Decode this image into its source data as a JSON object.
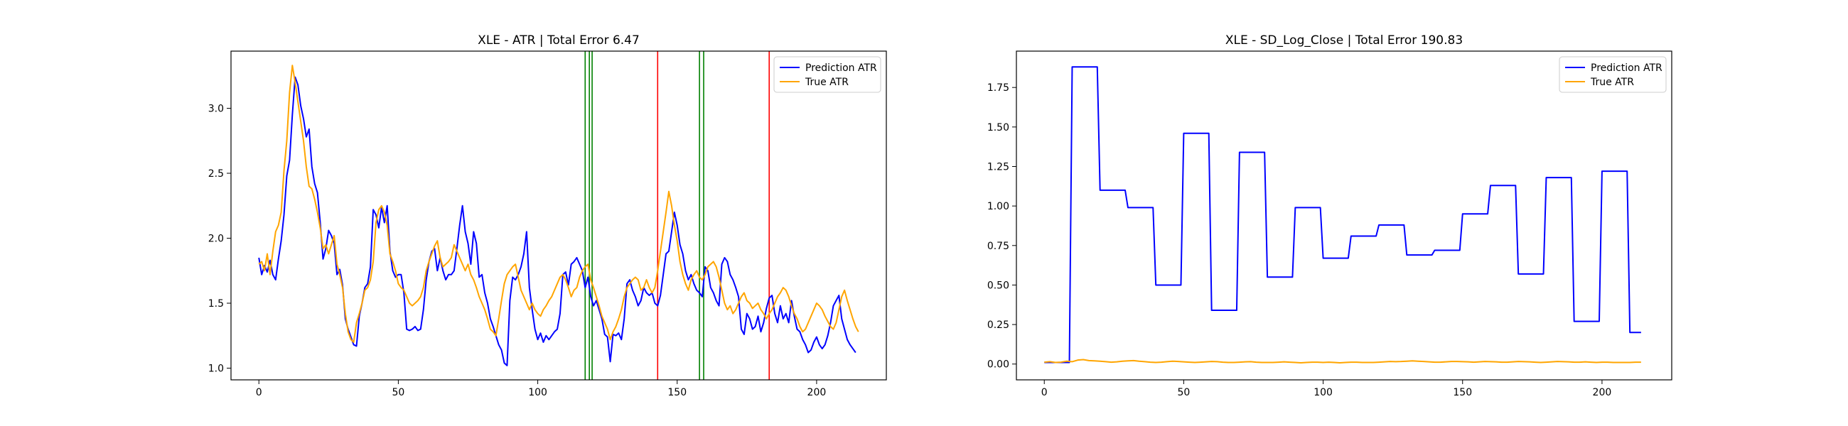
{
  "chart_data": [
    {
      "type": "line",
      "title": "XLE - ATR | Total Error 6.47",
      "xlabel": "",
      "ylabel": "",
      "xlim": [
        -10,
        225
      ],
      "ylim": [
        0.91,
        3.44
      ],
      "xticks": [
        0,
        50,
        100,
        150,
        200
      ],
      "yticks": [
        1.0,
        1.5,
        2.0,
        2.5,
        3.0
      ],
      "ytick_decimals": 1,
      "grid": false,
      "legend_position": "top-right",
      "vertical_lines": [
        {
          "x": 117,
          "color": "#008000"
        },
        {
          "x": 118.5,
          "color": "#008000"
        },
        {
          "x": 119.5,
          "color": "#008000"
        },
        {
          "x": 143,
          "color": "#ff0000"
        },
        {
          "x": 158,
          "color": "#008000"
        },
        {
          "x": 159.5,
          "color": "#008000"
        },
        {
          "x": 183,
          "color": "#ff0000"
        }
      ],
      "series": [
        {
          "name": "Prediction ATR",
          "color": "#0000ff",
          "x_start": 0,
          "values": [
            1.85,
            1.72,
            1.79,
            1.74,
            1.83,
            1.72,
            1.68,
            1.84,
            1.98,
            2.18,
            2.48,
            2.6,
            2.95,
            3.24,
            3.18,
            3.02,
            2.92,
            2.78,
            2.84,
            2.55,
            2.42,
            2.35,
            2.12,
            1.84,
            1.92,
            2.06,
            2.02,
            1.96,
            1.72,
            1.76,
            1.64,
            1.38,
            1.3,
            1.24,
            1.18,
            1.17,
            1.4,
            1.5,
            1.62,
            1.65,
            1.78,
            2.22,
            2.18,
            2.08,
            2.24,
            2.12,
            2.25,
            1.9,
            1.75,
            1.7,
            1.72,
            1.72,
            1.58,
            1.3,
            1.29,
            1.3,
            1.32,
            1.29,
            1.3,
            1.45,
            1.68,
            1.82,
            1.9,
            1.92,
            1.75,
            1.85,
            1.75,
            1.68,
            1.72,
            1.72,
            1.75,
            1.92,
            2.1,
            2.25,
            2.05,
            1.96,
            1.8,
            2.05,
            1.96,
            1.7,
            1.72,
            1.58,
            1.5,
            1.38,
            1.32,
            1.25,
            1.18,
            1.14,
            1.04,
            1.02,
            1.52,
            1.7,
            1.68,
            1.72,
            1.78,
            1.88,
            2.05,
            1.62,
            1.45,
            1.3,
            1.22,
            1.27,
            1.2,
            1.25,
            1.22,
            1.25,
            1.28,
            1.3,
            1.42,
            1.72,
            1.74,
            1.64,
            1.8,
            1.82,
            1.85,
            1.8,
            1.75,
            1.62,
            1.7,
            1.55,
            1.48,
            1.52,
            1.45,
            1.38,
            1.26,
            1.24,
            1.05,
            1.26,
            1.25,
            1.27,
            1.22,
            1.38,
            1.65,
            1.68,
            1.6,
            1.55,
            1.48,
            1.52,
            1.62,
            1.58,
            1.56,
            1.58,
            1.5,
            1.48,
            1.56,
            1.72,
            1.88,
            1.9,
            2.05,
            2.2,
            2.1,
            1.95,
            1.88,
            1.75,
            1.68,
            1.72,
            1.65,
            1.6,
            1.58,
            1.55,
            1.78,
            1.75,
            1.62,
            1.58,
            1.52,
            1.48,
            1.8,
            1.85,
            1.82,
            1.72,
            1.68,
            1.62,
            1.55,
            1.3,
            1.26,
            1.42,
            1.38,
            1.3,
            1.32,
            1.4,
            1.28,
            1.35,
            1.46,
            1.54,
            1.56,
            1.42,
            1.35,
            1.48,
            1.38,
            1.42,
            1.35,
            1.52,
            1.4,
            1.3,
            1.28,
            1.22,
            1.18,
            1.12,
            1.14,
            1.2,
            1.24,
            1.18,
            1.15,
            1.18,
            1.25,
            1.35,
            1.48,
            1.52,
            1.56,
            1.38,
            1.3,
            1.22,
            1.18,
            1.15,
            1.12
          ]
        },
        {
          "name": "True ATR",
          "color": "#ffa500",
          "x_start": 0,
          "values": [
            1.8,
            1.82,
            1.75,
            1.88,
            1.72,
            1.9,
            2.05,
            2.1,
            2.2,
            2.52,
            2.75,
            3.12,
            3.33,
            3.2,
            3.05,
            2.9,
            2.75,
            2.55,
            2.4,
            2.38,
            2.3,
            2.2,
            2.08,
            1.92,
            1.95,
            1.88,
            1.95,
            2.02,
            1.8,
            1.72,
            1.62,
            1.42,
            1.28,
            1.22,
            1.2,
            1.35,
            1.42,
            1.5,
            1.6,
            1.62,
            1.68,
            1.82,
            2.12,
            2.22,
            2.25,
            2.2,
            2.1,
            1.88,
            1.82,
            1.75,
            1.65,
            1.62,
            1.6,
            1.55,
            1.5,
            1.48,
            1.5,
            1.52,
            1.55,
            1.62,
            1.75,
            1.82,
            1.88,
            1.94,
            1.98,
            1.85,
            1.78,
            1.8,
            1.82,
            1.85,
            1.95,
            1.9,
            1.85,
            1.8,
            1.75,
            1.8,
            1.72,
            1.68,
            1.62,
            1.55,
            1.5,
            1.45,
            1.38,
            1.3,
            1.28,
            1.25,
            1.38,
            1.52,
            1.65,
            1.72,
            1.75,
            1.78,
            1.8,
            1.7,
            1.6,
            1.55,
            1.5,
            1.45,
            1.5,
            1.45,
            1.42,
            1.4,
            1.45,
            1.48,
            1.52,
            1.55,
            1.6,
            1.65,
            1.7,
            1.72,
            1.68,
            1.62,
            1.55,
            1.6,
            1.62,
            1.7,
            1.75,
            1.78,
            1.8,
            1.68,
            1.62,
            1.55,
            1.48,
            1.4,
            1.35,
            1.3,
            1.22,
            1.28,
            1.32,
            1.38,
            1.45,
            1.55,
            1.62,
            1.65,
            1.68,
            1.7,
            1.68,
            1.6,
            1.62,
            1.68,
            1.62,
            1.58,
            1.62,
            1.75,
            1.9,
            2.05,
            2.2,
            2.36,
            2.25,
            2.1,
            1.98,
            1.82,
            1.72,
            1.65,
            1.6,
            1.68,
            1.72,
            1.75,
            1.7,
            1.68,
            1.72,
            1.78,
            1.8,
            1.82,
            1.78,
            1.7,
            1.6,
            1.5,
            1.45,
            1.48,
            1.42,
            1.45,
            1.5,
            1.55,
            1.58,
            1.52,
            1.5,
            1.46,
            1.48,
            1.5,
            1.45,
            1.42,
            1.38,
            1.42,
            1.45,
            1.5,
            1.55,
            1.58,
            1.62,
            1.6,
            1.55,
            1.48,
            1.42,
            1.38,
            1.32,
            1.28,
            1.3,
            1.35,
            1.4,
            1.45,
            1.5,
            1.48,
            1.45,
            1.4,
            1.36,
            1.32,
            1.3,
            1.35,
            1.45,
            1.55,
            1.6,
            1.52,
            1.45,
            1.38,
            1.32,
            1.28
          ]
        }
      ]
    },
    {
      "type": "line",
      "title": "XLE - SD_Log_Close | Total Error 190.83",
      "xlabel": "",
      "ylabel": "",
      "xlim": [
        -10,
        225
      ],
      "ylim": [
        -0.1,
        1.98
      ],
      "xticks": [
        0,
        50,
        100,
        150,
        200
      ],
      "yticks": [
        0.0,
        0.25,
        0.5,
        0.75,
        1.0,
        1.25,
        1.5,
        1.75
      ],
      "ytick_decimals": 2,
      "grid": false,
      "legend_position": "top-right",
      "vertical_lines": [],
      "series": [
        {
          "name": "Prediction ATR",
          "color": "#0000ff",
          "segments": [
            {
              "x0": 0,
              "x1": 9,
              "y": 0.01
            },
            {
              "x0": 10,
              "x1": 19,
              "y": 1.88
            },
            {
              "x0": 20,
              "x1": 29,
              "y": 1.1
            },
            {
              "x0": 30,
              "x1": 39,
              "y": 0.99
            },
            {
              "x0": 40,
              "x1": 49,
              "y": 0.5
            },
            {
              "x0": 50,
              "x1": 59,
              "y": 1.46
            },
            {
              "x0": 60,
              "x1": 69,
              "y": 0.34
            },
            {
              "x0": 70,
              "x1": 79,
              "y": 1.34
            },
            {
              "x0": 80,
              "x1": 89,
              "y": 0.55
            },
            {
              "x0": 90,
              "x1": 99,
              "y": 0.99
            },
            {
              "x0": 100,
              "x1": 109,
              "y": 0.67
            },
            {
              "x0": 110,
              "x1": 119,
              "y": 0.81
            },
            {
              "x0": 120,
              "x1": 129,
              "y": 0.88
            },
            {
              "x0": 130,
              "x1": 139,
              "y": 0.69
            },
            {
              "x0": 140,
              "x1": 149,
              "y": 0.72
            },
            {
              "x0": 150,
              "x1": 159,
              "y": 0.95
            },
            {
              "x0": 160,
              "x1": 169,
              "y": 1.13
            },
            {
              "x0": 170,
              "x1": 179,
              "y": 0.57
            },
            {
              "x0": 180,
              "x1": 189,
              "y": 1.18
            },
            {
              "x0": 190,
              "x1": 199,
              "y": 0.27
            },
            {
              "x0": 200,
              "x1": 209,
              "y": 1.22
            },
            {
              "x0": 210,
              "x1": 214,
              "y": 0.2
            }
          ]
        },
        {
          "name": "True ATR",
          "color": "#ffa500",
          "x_start": 0,
          "x_step": 2,
          "values": [
            0.012,
            0.015,
            0.01,
            0.012,
            0.018,
            0.015,
            0.025,
            0.028,
            0.022,
            0.02,
            0.018,
            0.015,
            0.012,
            0.014,
            0.018,
            0.02,
            0.022,
            0.018,
            0.015,
            0.012,
            0.01,
            0.012,
            0.015,
            0.018,
            0.016,
            0.014,
            0.012,
            0.01,
            0.012,
            0.014,
            0.016,
            0.015,
            0.012,
            0.01,
            0.01,
            0.012,
            0.014,
            0.015,
            0.012,
            0.01,
            0.01,
            0.01,
            0.012,
            0.014,
            0.012,
            0.01,
            0.008,
            0.01,
            0.012,
            0.012,
            0.01,
            0.012,
            0.01,
            0.008,
            0.01,
            0.012,
            0.012,
            0.01,
            0.01,
            0.01,
            0.012,
            0.014,
            0.016,
            0.015,
            0.016,
            0.018,
            0.02,
            0.018,
            0.016,
            0.014,
            0.012,
            0.012,
            0.014,
            0.016,
            0.016,
            0.015,
            0.014,
            0.012,
            0.014,
            0.016,
            0.015,
            0.014,
            0.012,
            0.012,
            0.014,
            0.016,
            0.015,
            0.014,
            0.012,
            0.01,
            0.012,
            0.014,
            0.016,
            0.015,
            0.014,
            0.012,
            0.012,
            0.014,
            0.012,
            0.01,
            0.012,
            0.012,
            0.01,
            0.01,
            0.01,
            0.01,
            0.012,
            0.012
          ]
        }
      ]
    }
  ]
}
